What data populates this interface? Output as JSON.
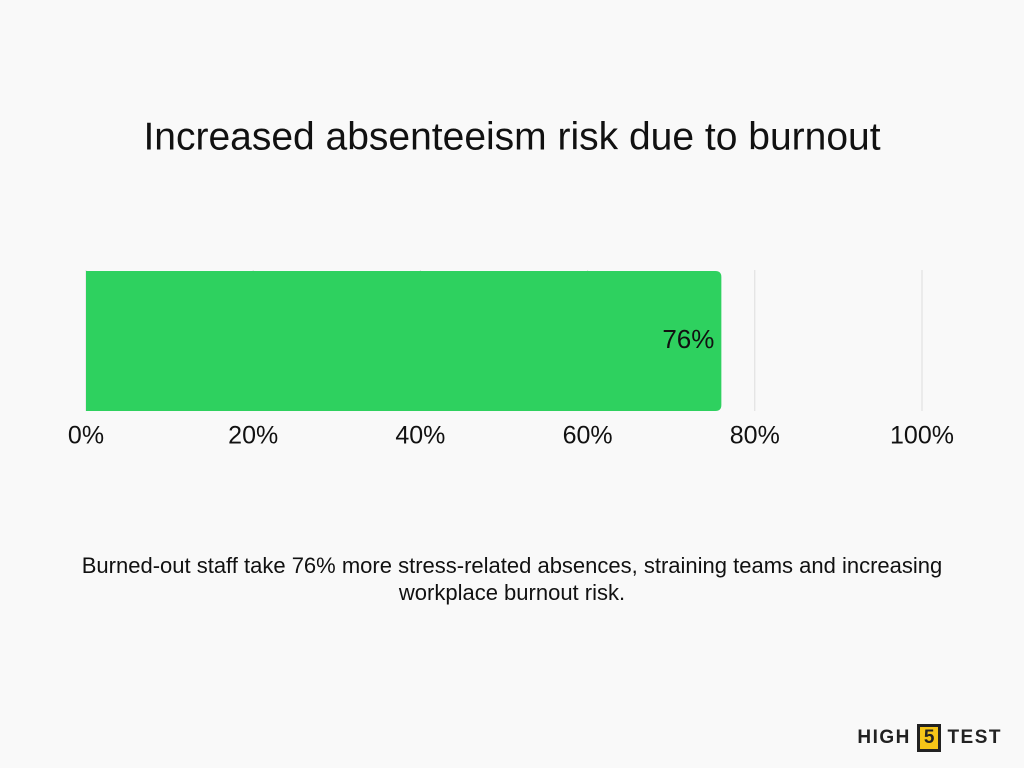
{
  "chart_data": {
    "type": "bar",
    "orientation": "horizontal",
    "title": "Increased absenteeism risk due to burnout",
    "categories": [
      null
    ],
    "values": [
      76
    ],
    "value_labels": [
      "76%"
    ],
    "color": "#2ed15f",
    "xlim": [
      0,
      100
    ],
    "xticks": [
      {
        "value": 0,
        "label": "0%"
      },
      {
        "value": 20,
        "label": "20%"
      },
      {
        "value": 40,
        "label": "40%"
      },
      {
        "value": 60,
        "label": "60%"
      },
      {
        "value": 80,
        "label": "80%"
      },
      {
        "value": 100,
        "label": "100%"
      }
    ],
    "grid": true,
    "caption": "Burned-out staff take 76% more stress-related absences, straining teams and increasing workplace burnout risk."
  },
  "brand": {
    "left": "HIGH",
    "box": "5",
    "right": "TEST"
  }
}
